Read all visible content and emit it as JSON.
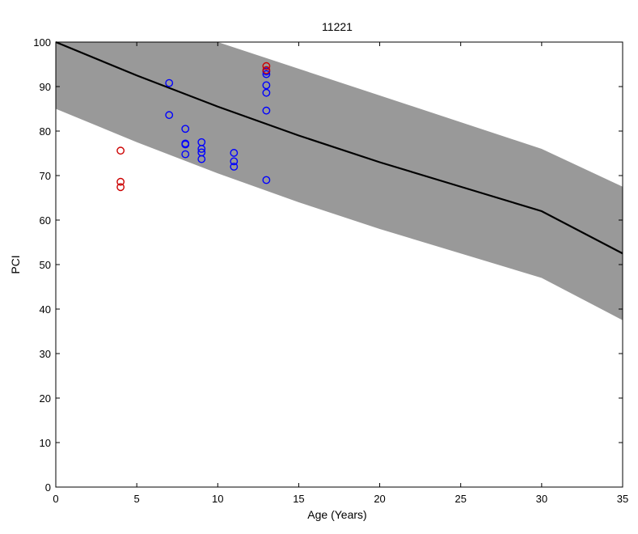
{
  "chart_data": {
    "type": "scatter",
    "title": "11221",
    "xlabel": "Age (Years)",
    "ylabel": "PCI",
    "xlim": [
      0,
      35
    ],
    "ylim": [
      0,
      100
    ],
    "xticks": [
      0,
      5,
      10,
      15,
      20,
      25,
      30,
      35
    ],
    "yticks": [
      0,
      10,
      20,
      30,
      40,
      50,
      60,
      70,
      80,
      90,
      100
    ],
    "grid": false,
    "colors": {
      "band_fill": "#999999",
      "curve": "#000000",
      "series_blue": "#0000ff",
      "series_red": "#cc0000"
    },
    "curve": {
      "name": "expected",
      "x": [
        0,
        5,
        10,
        15,
        20,
        25,
        30,
        35
      ],
      "y": [
        100,
        92.5,
        85.5,
        79.0,
        73.0,
        67.5,
        62.0,
        52.5
      ]
    },
    "band": {
      "name": "confidence-band",
      "x": [
        0,
        5,
        10,
        15,
        20,
        25,
        30,
        35
      ],
      "upper": [
        100,
        100,
        100,
        94.0,
        88.0,
        82.0,
        76.0,
        67.5
      ],
      "lower": [
        85,
        77.5,
        70.5,
        64.0,
        58.0,
        52.5,
        47.0,
        37.5
      ]
    },
    "series": [
      {
        "name": "blue",
        "marker": "circle",
        "points": [
          [
            7,
            90.8
          ],
          [
            7,
            83.6
          ],
          [
            8,
            80.5
          ],
          [
            8,
            77.2
          ],
          [
            8,
            77.0
          ],
          [
            8,
            74.8
          ],
          [
            9,
            77.5
          ],
          [
            9,
            76.0
          ],
          [
            9,
            75.2
          ],
          [
            9,
            73.7
          ],
          [
            11,
            75.1
          ],
          [
            11,
            73.2
          ],
          [
            11,
            72.0
          ],
          [
            13,
            93.4
          ],
          [
            13,
            92.8
          ],
          [
            13,
            90.3
          ],
          [
            13,
            88.6
          ],
          [
            13,
            84.6
          ],
          [
            13,
            69.0
          ]
        ]
      },
      {
        "name": "red",
        "marker": "circle",
        "points": [
          [
            4,
            75.6
          ],
          [
            4,
            68.6
          ],
          [
            4,
            67.4
          ],
          [
            13,
            94.6
          ],
          [
            13,
            93.7
          ]
        ]
      }
    ]
  }
}
